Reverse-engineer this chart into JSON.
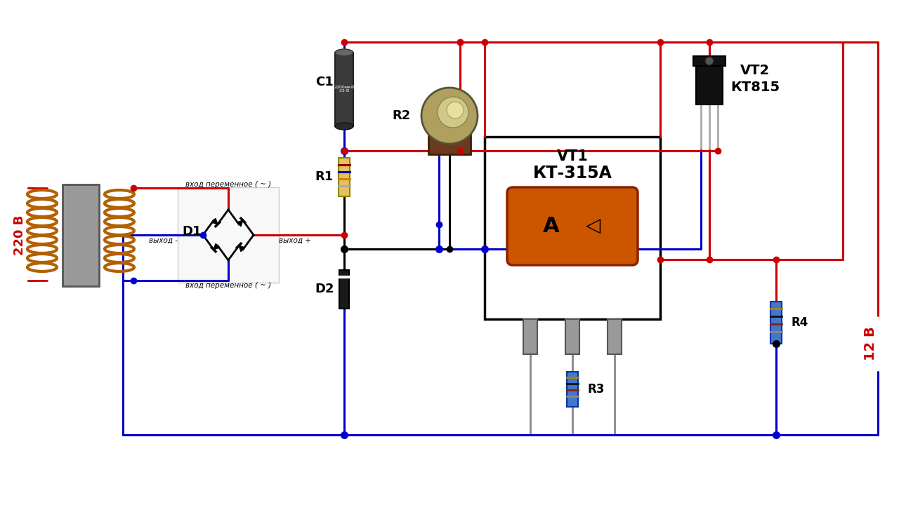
{
  "bg_color": "#ffffff",
  "red": "#cc0000",
  "blue": "#0000cc",
  "black": "#000000",
  "gray": "#888888",
  "dark_gray": "#444444",
  "light_gray": "#cccccc",
  "orange_dark": "#cc5500",
  "copper": "#b36000",
  "label_220": "220 B",
  "label_12": "12 B",
  "label_C1": "C1",
  "label_R1": "R1",
  "label_R2": "R2",
  "label_R3": "R3",
  "label_R4": "R4",
  "label_D1": "D1",
  "label_D2": "D2",
  "label_VT1": "VT1",
  "label_VT1_model": "КТ-315А",
  "label_VT2": "VT2",
  "label_VT2_model": "КТ815",
  "label_vhod1": "вход переменное ( ~ )",
  "label_vhod2": "вход переменное ( ~ )",
  "label_vyhod_minus": "выход -",
  "label_vyhod_plus": "выход +"
}
